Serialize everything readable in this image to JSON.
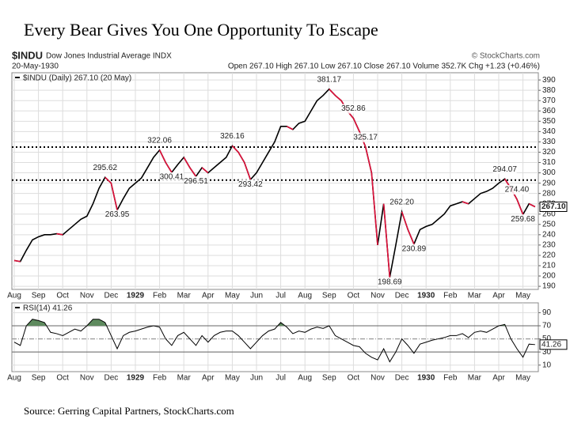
{
  "title": "Every Bear Gives You One Opportunity To Escape",
  "source": "Source: Gerring Capital Partners, StockCharts.com",
  "chart_data": [
    {
      "type": "line",
      "symbol": "$INDU",
      "name": "Dow Jones Industrial Average INDX",
      "credit": "© StockCharts.com",
      "date": "20-May-1930",
      "quote": "Open 267.10  High 267.10  Low 267.10  Close 267.10  Volume 352.7K  Chg +1.23 (+0.46%)",
      "legend": "$INDU (Daily) 267.10 (20 May)",
      "categories": [
        "Aug",
        null,
        null,
        null,
        "Sep",
        null,
        null,
        null,
        "Oct",
        null,
        null,
        null,
        "Nov",
        null,
        null,
        null,
        "Dec",
        null,
        null,
        null,
        "1929",
        null,
        null,
        null,
        "Feb",
        null,
        null,
        null,
        "Mar",
        null,
        null,
        null,
        "Apr",
        null,
        null,
        null,
        "May",
        null,
        null,
        null,
        "Jun",
        null,
        null,
        null,
        "Jul",
        null,
        null,
        null,
        "Aug",
        null,
        null,
        null,
        "Sep",
        null,
        null,
        null,
        "Oct",
        null,
        null,
        null,
        "Nov",
        null,
        null,
        null,
        "Dec",
        null,
        null,
        null,
        "1930",
        null,
        null,
        null,
        "Feb",
        null,
        null,
        null,
        "Mar",
        null,
        null,
        null,
        "Apr",
        null,
        null,
        null,
        "May",
        null,
        null
      ],
      "series": [
        {
          "name": "$INDU",
          "color": "#000000",
          "down_color": "#e0103a",
          "values": [
            215,
            214,
            225,
            235,
            238,
            240,
            240,
            241,
            240,
            245,
            250,
            255,
            258,
            270,
            285,
            295.62,
            290,
            263.95,
            275,
            285,
            290,
            295,
            305,
            315,
            322.06,
            310,
            300.41,
            308,
            315,
            305,
            296.51,
            305,
            300,
            305,
            310,
            315,
            326.16,
            320,
            310,
            293.42,
            300,
            310,
            320,
            330,
            345,
            345,
            342,
            348,
            350,
            360,
            370,
            375,
            381.17,
            375,
            370,
            360,
            352.86,
            340,
            325.17,
            300,
            230,
            270,
            198.69,
            230,
            262.2,
            245,
            230.89,
            245,
            248,
            250,
            255,
            260,
            268,
            270,
            272,
            270,
            275,
            280,
            282,
            285,
            290,
            294.07,
            285,
            274.4,
            259.68,
            270,
            267.1
          ],
          "value_labels": [
            null,
            null,
            null,
            null,
            null,
            null,
            null,
            null,
            null,
            null,
            null,
            null,
            null,
            null,
            null,
            "295.62",
            null,
            "263.95",
            null,
            null,
            null,
            null,
            null,
            null,
            "322.06",
            null,
            "300.41",
            null,
            null,
            null,
            "296.51",
            null,
            null,
            null,
            null,
            null,
            "326.16",
            null,
            null,
            "293.42",
            null,
            null,
            null,
            null,
            null,
            null,
            null,
            null,
            null,
            null,
            null,
            null,
            "381.17",
            null,
            null,
            null,
            "352.86",
            null,
            "325.17",
            null,
            null,
            null,
            "198.69",
            null,
            "262.20",
            null,
            "230.89",
            null,
            null,
            null,
            null,
            null,
            null,
            null,
            null,
            null,
            null,
            null,
            null,
            null,
            null,
            "294.07",
            null,
            "274.40",
            "259.68",
            null,
            "267.10"
          ]
        }
      ],
      "reference_lines": [
        325,
        293
      ],
      "ylim": [
        187,
        397
      ],
      "yticks": [
        190,
        200,
        210,
        220,
        230,
        240,
        250,
        260,
        270,
        280,
        290,
        300,
        310,
        320,
        330,
        340,
        350,
        360,
        370,
        380,
        390
      ],
      "grid": true
    },
    {
      "type": "line",
      "legend": "RSI(14) 41.26",
      "series": [
        {
          "name": "RSI(14)",
          "color": "#000000",
          "fill_color": "#5e8a5e",
          "values": [
            45,
            40,
            70,
            80,
            78,
            75,
            60,
            58,
            55,
            60,
            65,
            62,
            70,
            80,
            80,
            75,
            55,
            35,
            55,
            60,
            62,
            65,
            68,
            70,
            68,
            50,
            40,
            55,
            60,
            50,
            40,
            55,
            45,
            55,
            60,
            62,
            62,
            55,
            45,
            35,
            45,
            55,
            62,
            65,
            75,
            68,
            58,
            62,
            60,
            65,
            68,
            66,
            70,
            55,
            50,
            45,
            40,
            38,
            28,
            22,
            18,
            35,
            15,
            30,
            50,
            40,
            28,
            42,
            45,
            48,
            50,
            52,
            55,
            55,
            58,
            52,
            60,
            62,
            60,
            65,
            70,
            72,
            50,
            35,
            22,
            42,
            41.26
          ],
          "value_labels": [
            null,
            null,
            null,
            null,
            null,
            null,
            null,
            null,
            null,
            null,
            null,
            null,
            null,
            null,
            null,
            null,
            null,
            null,
            null,
            null,
            null,
            null,
            null,
            null,
            null,
            null,
            null,
            null,
            null,
            null,
            null,
            null,
            null,
            null,
            null,
            null,
            null,
            null,
            null,
            null,
            null,
            null,
            null,
            null,
            null,
            null,
            null,
            null,
            null,
            null,
            null,
            null,
            null,
            null,
            null,
            null,
            null,
            null,
            null,
            null,
            null,
            null,
            null,
            null,
            null,
            null,
            null,
            null,
            null,
            null,
            null,
            null,
            null,
            null,
            null,
            null,
            null,
            null,
            null,
            null,
            null,
            null,
            null,
            null,
            null,
            null,
            "41.26"
          ]
        }
      ],
      "overbought": 70,
      "oversold": 30,
      "midline": 50,
      "ylim": [
        0,
        105
      ],
      "yticks": [
        10,
        30,
        50,
        70,
        90
      ],
      "grid": true
    }
  ]
}
